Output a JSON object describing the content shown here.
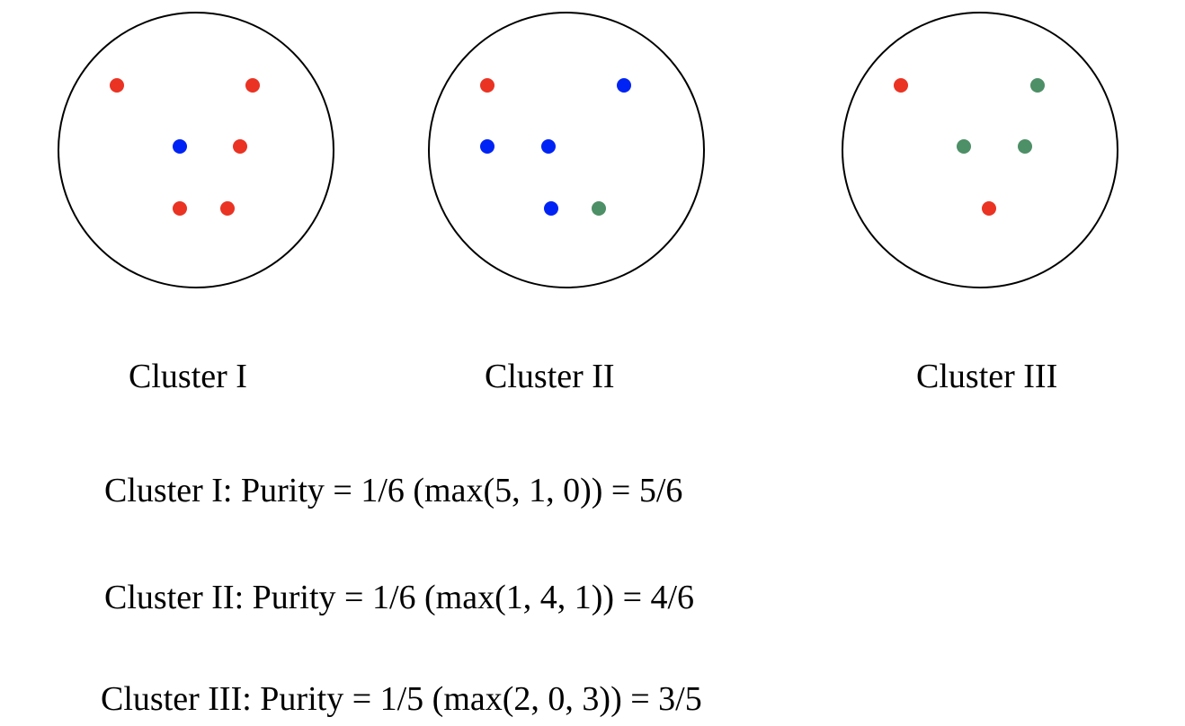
{
  "colors": {
    "red": "#ea3323",
    "blue": "#0023f5",
    "green": "#4d8f66",
    "outline": "#000000"
  },
  "clusters": [
    {
      "label": "Cluster I",
      "points": [
        "red",
        "red",
        "blue",
        "red",
        "red",
        "red"
      ]
    },
    {
      "label": "Cluster II",
      "points": [
        "red",
        "blue",
        "blue",
        "blue",
        "blue",
        "green"
      ]
    },
    {
      "label": "Cluster III",
      "points": [
        "red",
        "green",
        "green",
        "green",
        "red"
      ]
    }
  ],
  "formulas": [
    "Cluster I: Purity = 1/6 (max(5, 1, 0)) = 5/6",
    "Cluster II: Purity = 1/6 (max(1, 4, 1)) = 4/6",
    "Cluster III: Purity = 1/5 (max(2, 0, 3)) = 3/5"
  ]
}
